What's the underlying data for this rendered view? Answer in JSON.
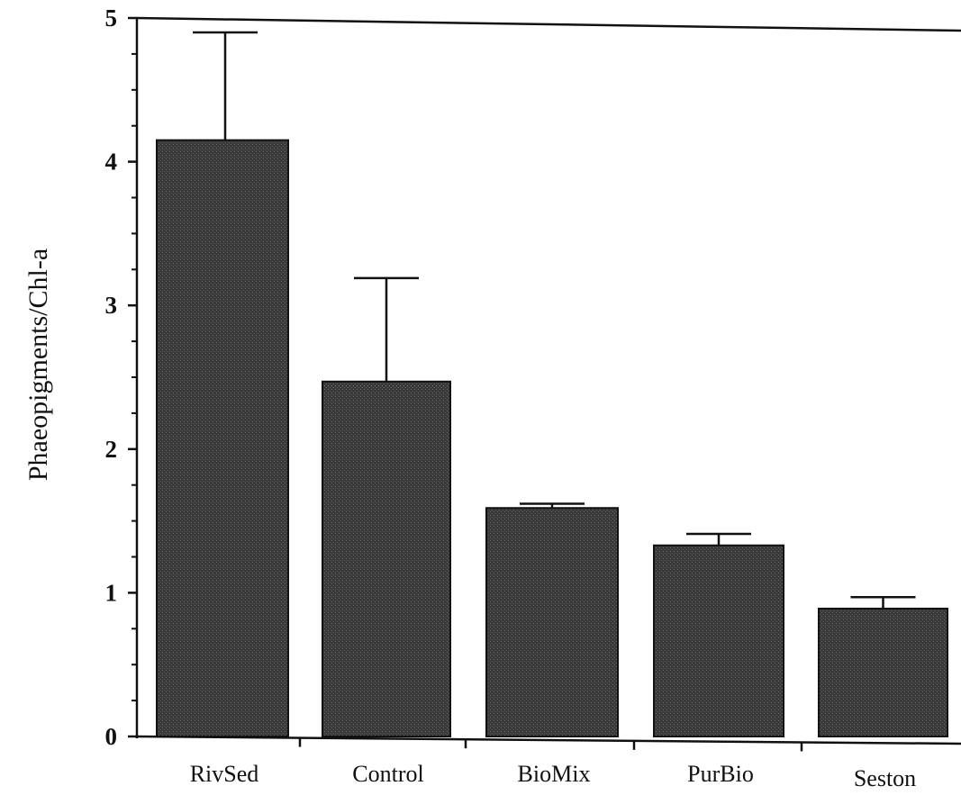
{
  "chart_data": {
    "type": "bar",
    "title": "",
    "xlabel": "",
    "ylabel": "Phaeopigments/Chl-a",
    "categories": [
      "RivSed",
      "Control",
      "BioMix",
      "PurBio",
      "Seston"
    ],
    "values": [
      4.15,
      2.47,
      1.59,
      1.33,
      0.89
    ],
    "error_upper": [
      4.9,
      3.19,
      1.62,
      1.41,
      0.97
    ],
    "ylim": [
      0,
      5
    ],
    "y_ticks": [
      0,
      1,
      2,
      3,
      4,
      5
    ],
    "y_minor_step": 0.25,
    "grid": false,
    "legend": "none",
    "colors": {
      "bar_fill": "#3a3a3a",
      "bar_stroke": "#111111",
      "axis": "#111111",
      "error_bar": "#111111"
    }
  }
}
